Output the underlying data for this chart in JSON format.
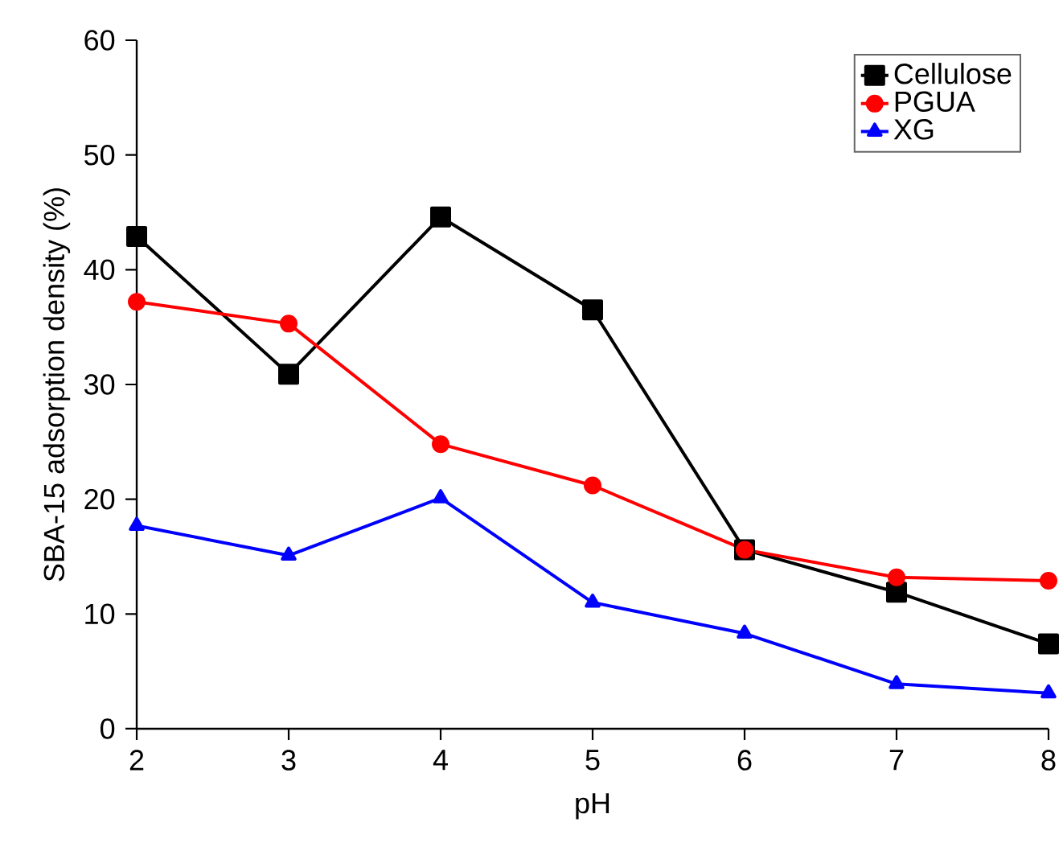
{
  "chart_data": {
    "type": "line",
    "xlabel": "pH",
    "ylabel": "SBA-15 adsorption density (%)",
    "x": [
      2,
      3,
      4,
      5,
      6,
      7,
      8
    ],
    "series": [
      {
        "name": "Cellulose",
        "color": "#000000",
        "marker": "square",
        "values": [
          42.9,
          30.9,
          44.6,
          36.5,
          15.6,
          11.9,
          7.4
        ]
      },
      {
        "name": "PGUA",
        "color": "#ff0000",
        "marker": "circle",
        "values": [
          37.2,
          35.3,
          24.8,
          21.2,
          15.6,
          13.2,
          12.9
        ]
      },
      {
        "name": "XG",
        "color": "#0000ff",
        "marker": "triangle",
        "values": [
          17.7,
          15.1,
          20.1,
          11.0,
          8.3,
          3.9,
          3.1
        ]
      }
    ],
    "xlim": [
      2,
      8
    ],
    "xticks": [
      2,
      3,
      4,
      5,
      6,
      7,
      8
    ],
    "ylim": [
      0,
      60
    ],
    "yticks": [
      0,
      10,
      20,
      30,
      40,
      50,
      60
    ],
    "grid": false,
    "legend": "top right",
    "line_style": "solid"
  }
}
